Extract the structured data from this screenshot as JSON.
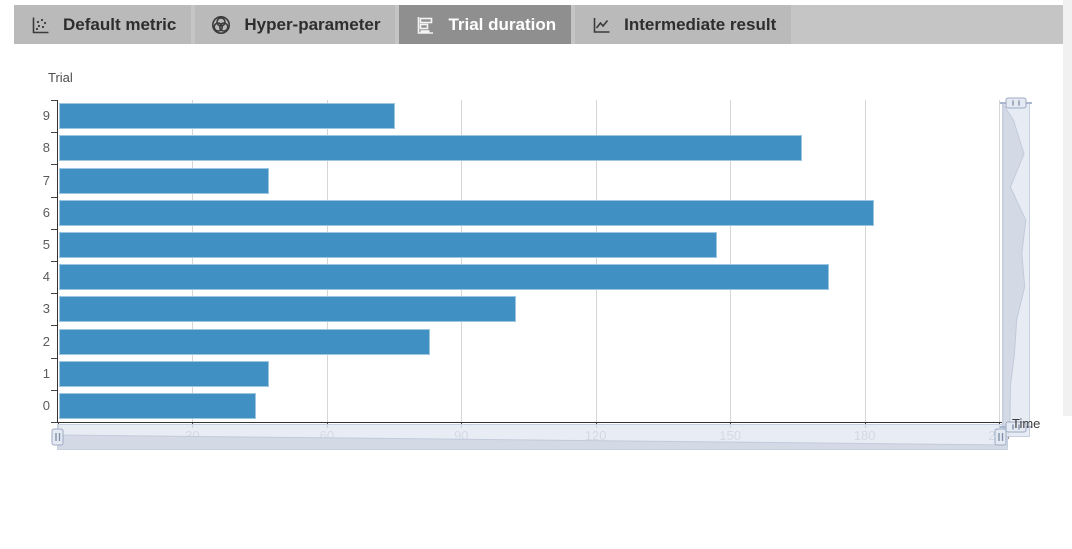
{
  "tabs": [
    {
      "label": "Default metric",
      "icon": "scatter-plot-icon",
      "selected": false
    },
    {
      "label": "Hyper-parameter",
      "icon": "sphere-icon",
      "selected": false
    },
    {
      "label": "Trial duration",
      "icon": "bar-chart-icon",
      "selected": true
    },
    {
      "label": "Intermediate result",
      "icon": "line-chart-icon",
      "selected": false
    }
  ],
  "chart": {
    "title": "Trial",
    "x_axis_name": "Time"
  },
  "chart_data": {
    "type": "bar",
    "orientation": "horizontal",
    "title": "Trial",
    "xlabel": "Time",
    "ylabel": "Trial",
    "categories": [
      "0",
      "1",
      "2",
      "3",
      "4",
      "5",
      "6",
      "7",
      "8",
      "9"
    ],
    "values": [
      44,
      47,
      83,
      102,
      172,
      147,
      182,
      47,
      166,
      75
    ],
    "xlim": [
      0,
      210
    ],
    "xticks": [
      0,
      30,
      60,
      90,
      120,
      150,
      180,
      210
    ],
    "grid": true,
    "legend": "none",
    "category_axis_order": "bottom-to-top"
  },
  "colors": {
    "bar_fill": "#4090c3",
    "bar_border": "#9cc6e0",
    "active_tab_bg": "#8f8f8f",
    "tab_bg": "#bababa",
    "tabbar_bg": "#c5c5c5",
    "slider_bg": "#e4e9f2",
    "slider_shadow": "#d3dae6",
    "axis": "#333333",
    "gridline": "#d6d6d6"
  }
}
